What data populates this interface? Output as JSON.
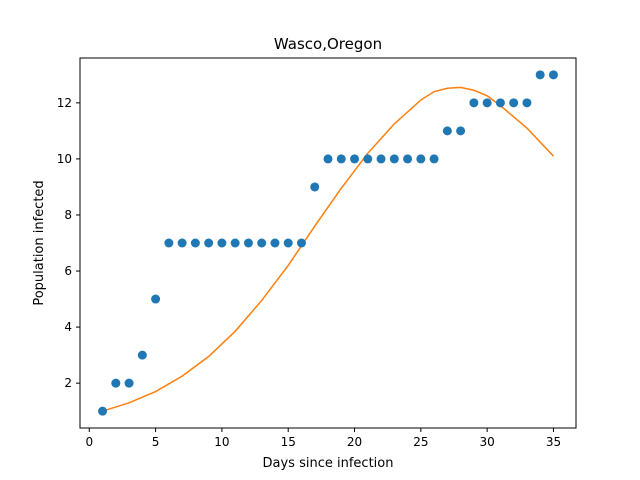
{
  "chart_data": {
    "type": "scatter",
    "title": "Wasco,Oregon",
    "xlabel": "Days since infection",
    "ylabel": "Population infected",
    "xlim": [
      -0.7,
      36.7
    ],
    "ylim": [
      0.4,
      13.6
    ],
    "xticks": [
      0,
      5,
      10,
      15,
      20,
      25,
      30,
      35
    ],
    "yticks": [
      2,
      4,
      6,
      8,
      10,
      12
    ],
    "grid": false,
    "series": [
      {
        "kind": "scatter",
        "color": "#1f77b4",
        "x": [
          1,
          2,
          3,
          4,
          5,
          6,
          7,
          8,
          9,
          10,
          11,
          12,
          13,
          14,
          15,
          16,
          17,
          18,
          19,
          20,
          21,
          22,
          23,
          24,
          25,
          26,
          27,
          28,
          29,
          30,
          31,
          32,
          33,
          34,
          35
        ],
        "y": [
          1,
          2,
          2,
          3,
          5,
          7,
          7,
          7,
          7,
          7,
          7,
          7,
          7,
          7,
          7,
          7,
          9,
          10,
          10,
          10,
          10,
          10,
          10,
          10,
          10,
          10,
          11,
          11,
          12,
          12,
          12,
          12,
          12,
          13,
          13
        ]
      },
      {
        "kind": "line",
        "color": "#ff7f0e",
        "x": [
          1,
          3,
          5,
          7,
          9,
          11,
          13,
          15,
          17,
          19,
          21,
          23,
          25,
          26,
          27,
          28,
          29,
          30,
          31,
          33,
          35
        ],
        "y": [
          1.0,
          1.3,
          1.7,
          2.25,
          2.95,
          3.85,
          4.95,
          6.2,
          7.6,
          8.95,
          10.2,
          11.25,
          12.1,
          12.4,
          12.52,
          12.55,
          12.45,
          12.25,
          11.9,
          11.1,
          10.1
        ]
      }
    ]
  }
}
